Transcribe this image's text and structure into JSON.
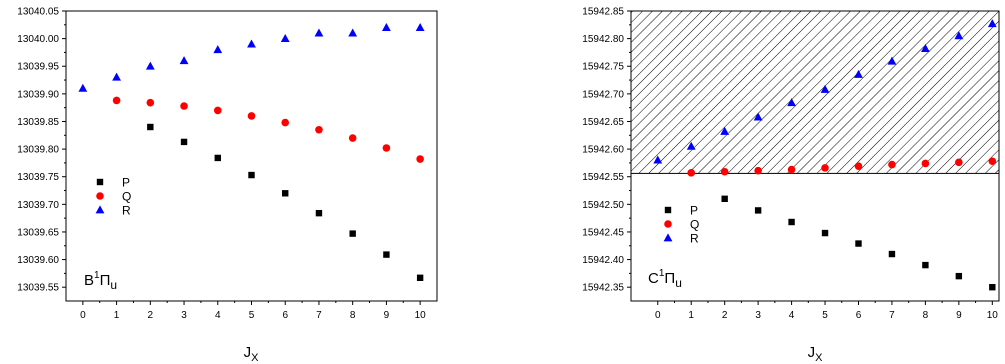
{
  "chart_data": [
    {
      "type": "scatter",
      "panel_label": {
        "base": "B",
        "sup": "1",
        "greek": "Π",
        "sub": "u"
      },
      "xlabel": {
        "base": "J",
        "sub": "X"
      },
      "ylabel": "",
      "xlim": [
        -0.5,
        10.5
      ],
      "ylim": [
        13039.525,
        13040.05
      ],
      "xticks": [
        0,
        1,
        2,
        3,
        4,
        5,
        6,
        7,
        8,
        9,
        10
      ],
      "yticks": [
        13039.55,
        13039.6,
        13039.65,
        13039.7,
        13039.75,
        13039.8,
        13039.85,
        13039.9,
        13039.95,
        13040.0,
        13040.05
      ],
      "ytick_labels": [
        "13039.55",
        "13039.60",
        "13039.65",
        "13039.70",
        "13039.75",
        "13039.80",
        "13039.85",
        "13039.90",
        "13039.95",
        "13040.00",
        "13040.05"
      ],
      "grid": false,
      "legend_position": "left",
      "series": [
        {
          "name": "P",
          "marker": "square",
          "color": "#000000",
          "x": [
            2,
            3,
            4,
            5,
            6,
            7,
            8,
            9,
            10
          ],
          "y": [
            13039.84,
            13039.813,
            13039.784,
            13039.753,
            13039.72,
            13039.684,
            13039.647,
            13039.609,
            13039.567
          ]
        },
        {
          "name": "Q",
          "marker": "circle",
          "color": "#ff0000",
          "x": [
            1,
            2,
            3,
            4,
            5,
            6,
            7,
            8,
            9,
            10
          ],
          "y": [
            13039.888,
            13039.884,
            13039.878,
            13039.87,
            13039.86,
            13039.848,
            13039.835,
            13039.82,
            13039.802,
            13039.782
          ]
        },
        {
          "name": "R",
          "marker": "triangle",
          "color": "#0000ff",
          "x": [
            0,
            1,
            2,
            3,
            4,
            5,
            6,
            7,
            8,
            9,
            10
          ],
          "y": [
            13039.91,
            13039.93,
            13039.95,
            13039.96,
            13039.98,
            13039.99,
            13040.0,
            13040.01,
            13040.01,
            13040.02,
            13040.02
          ]
        }
      ]
    },
    {
      "type": "scatter",
      "panel_label": {
        "base": "C",
        "sup": "1",
        "greek": "Π",
        "sub": "u"
      },
      "xlabel": {
        "base": "J",
        "sub": "X"
      },
      "ylabel": "",
      "xlim": [
        -0.8,
        10.2
      ],
      "ylim": [
        15942.325,
        15942.85
      ],
      "xticks": [
        0,
        1,
        2,
        3,
        4,
        5,
        6,
        7,
        8,
        9,
        10
      ],
      "yticks": [
        15942.35,
        15942.4,
        15942.45,
        15942.5,
        15942.55,
        15942.6,
        15942.65,
        15942.7,
        15942.75,
        15942.8,
        15942.85
      ],
      "ytick_labels": [
        "15942.35",
        "15942.40",
        "15942.45",
        "15942.50",
        "15942.55",
        "15942.60",
        "15942.65",
        "15942.70",
        "15942.75",
        "15942.80",
        "15942.85"
      ],
      "grid": false,
      "legend_position": "left",
      "hatched_band": {
        "y_from": 15942.556,
        "y_to": 15942.85
      },
      "series": [
        {
          "name": "P",
          "marker": "square",
          "color": "#000000",
          "x": [
            2,
            3,
            4,
            5,
            6,
            7,
            8,
            9,
            10
          ],
          "y": [
            15942.51,
            15942.489,
            15942.468,
            15942.448,
            15942.429,
            15942.41,
            15942.39,
            15942.37,
            15942.35
          ]
        },
        {
          "name": "Q",
          "marker": "circle",
          "color": "#ff0000",
          "x": [
            1,
            2,
            3,
            4,
            5,
            6,
            7,
            8,
            9,
            10
          ],
          "y": [
            15942.557,
            15942.559,
            15942.561,
            15942.563,
            15942.566,
            15942.569,
            15942.572,
            15942.574,
            15942.576,
            15942.578
          ]
        },
        {
          "name": "R",
          "marker": "triangle",
          "color": "#0000ff",
          "x": [
            0,
            1,
            2,
            3,
            4,
            5,
            6,
            7,
            8,
            9,
            10
          ],
          "y": [
            15942.58,
            15942.605,
            15942.632,
            15942.658,
            15942.684,
            15942.708,
            15942.735,
            15942.759,
            15942.782,
            15942.805,
            15942.827
          ]
        }
      ]
    }
  ]
}
